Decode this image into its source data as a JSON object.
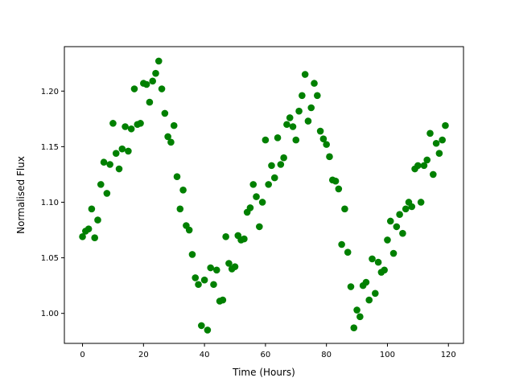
{
  "chart_data": {
    "type": "scatter",
    "title": "",
    "xlabel": "Time (Hours)",
    "ylabel": "Normalised Flux",
    "xlim": [
      -5.95,
      124.95
    ],
    "ylim": [
      0.973,
      1.24
    ],
    "xticks": [
      0,
      20,
      40,
      60,
      80,
      100,
      120
    ],
    "xtick_labels": [
      "0",
      "20",
      "40",
      "60",
      "80",
      "100",
      "120"
    ],
    "yticks": [
      1.0,
      1.05,
      1.1,
      1.15,
      1.2
    ],
    "ytick_labels": [
      "1.00",
      "1.05",
      "1.10",
      "1.15",
      "1.20"
    ],
    "grid": false,
    "legend": "none",
    "marker_color": "#008000",
    "series": [
      {
        "x": [
          0,
          1,
          2,
          3,
          4,
          5,
          6,
          7,
          8,
          9,
          10,
          11,
          12,
          13,
          14,
          15,
          16,
          17,
          18,
          19,
          20,
          21,
          22,
          23,
          24,
          25,
          26,
          27,
          28,
          29,
          30,
          31,
          32,
          33,
          34,
          35,
          36,
          37,
          38,
          39,
          40,
          41,
          42,
          43,
          44,
          45,
          46,
          47,
          48,
          49,
          50,
          51,
          52,
          53,
          54,
          55,
          56,
          57,
          58,
          59,
          60,
          61,
          62,
          63,
          64,
          65,
          66,
          67,
          68,
          69,
          70,
          71,
          72,
          73,
          74,
          75,
          76,
          77,
          78,
          79,
          80,
          81,
          82,
          83,
          84,
          85,
          86,
          87,
          88,
          89,
          90,
          91,
          92,
          93,
          94,
          95,
          96,
          97,
          98,
          99,
          100,
          101,
          102,
          103,
          104,
          105,
          106,
          107,
          108,
          109,
          110,
          111,
          112,
          113,
          114,
          115,
          116,
          117,
          118,
          119
        ],
        "y": [
          1.069,
          1.074,
          1.076,
          1.094,
          1.068,
          1.084,
          1.116,
          1.136,
          1.108,
          1.134,
          1.171,
          1.144,
          1.13,
          1.148,
          1.168,
          1.146,
          1.166,
          1.202,
          1.17,
          1.171,
          1.207,
          1.206,
          1.19,
          1.209,
          1.216,
          1.227,
          1.202,
          1.18,
          1.159,
          1.154,
          1.169,
          1.123,
          1.094,
          1.111,
          1.079,
          1.075,
          1.053,
          1.032,
          1.026,
          0.989,
          1.03,
          0.985,
          1.041,
          1.026,
          1.039,
          1.011,
          1.012,
          1.069,
          1.045,
          1.04,
          1.042,
          1.07,
          1.066,
          1.067,
          1.091,
          1.095,
          1.116,
          1.105,
          1.078,
          1.1,
          1.156,
          1.116,
          1.133,
          1.122,
          1.158,
          1.134,
          1.14,
          1.17,
          1.176,
          1.168,
          1.156,
          1.182,
          1.196,
          1.215,
          1.173,
          1.185,
          1.207,
          1.196,
          1.164,
          1.157,
          1.152,
          1.141,
          1.12,
          1.119,
          1.112,
          1.062,
          1.094,
          1.055,
          1.024,
          0.987,
          1.003,
          0.997,
          1.025,
          1.028,
          1.012,
          1.049,
          1.018,
          1.046,
          1.037,
          1.039,
          1.066,
          1.083,
          1.054,
          1.078,
          1.089,
          1.072,
          1.094,
          1.1,
          1.096,
          1.13,
          1.133,
          1.1,
          1.133,
          1.138,
          1.162,
          1.125,
          1.153,
          1.144,
          1.156,
          1.169
        ]
      }
    ]
  }
}
